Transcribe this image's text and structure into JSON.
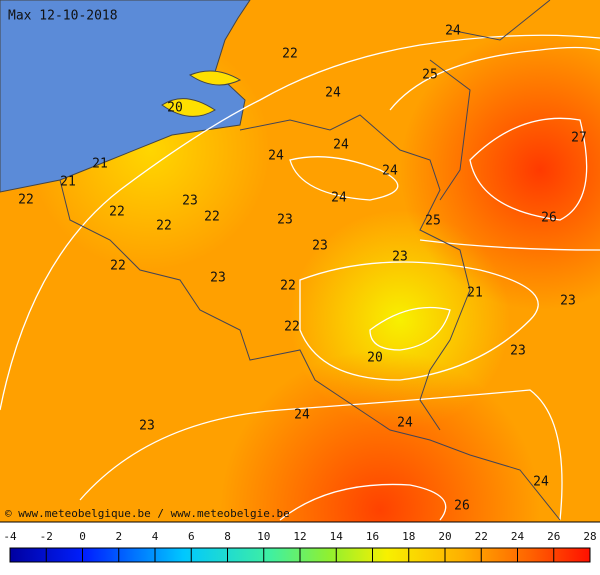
{
  "header": {
    "title": "Max 12-10-2018"
  },
  "labels": [
    24,
    22,
    25,
    24,
    20,
    27,
    24,
    24,
    21,
    24,
    21,
    22,
    24,
    23,
    22,
    22,
    25,
    26,
    23,
    22,
    23,
    23,
    22,
    23,
    22,
    21,
    23,
    22,
    23,
    20,
    24,
    24,
    23,
    24,
    26
  ],
  "footer": "© www.meteobelgique.be / www.meteobelgie.be",
  "legend": {
    "ticks": [
      -4,
      -2,
      0,
      2,
      4,
      6,
      8,
      10,
      12,
      14,
      16,
      18,
      20,
      22,
      24,
      26,
      28
    ]
  }
}
